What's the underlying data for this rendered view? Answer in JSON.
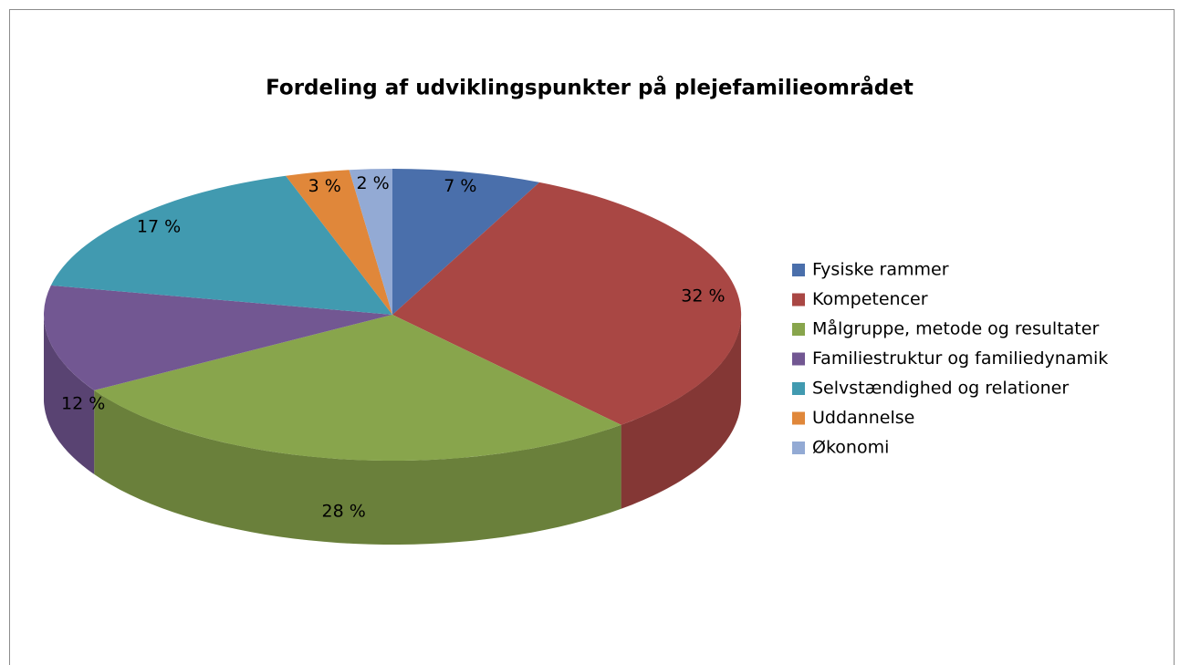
{
  "chart_data": {
    "type": "pie3d",
    "title": "Fordeling af udviklingspunkter på plejefamilieområdet",
    "categories": [
      "Fysiske rammer",
      "Kompetencer",
      "Målgruppe, metode og resultater",
      "Familiestruktur og familiedynamik",
      "Selvstændighed og relationer",
      "Uddannelse",
      "Økonomi"
    ],
    "values": [
      7,
      32,
      28,
      12,
      17,
      3,
      2
    ],
    "value_labels": [
      "7 %",
      "32 %",
      "28 %",
      "12 %",
      "17 %",
      "3 %",
      "2 %"
    ],
    "colors": [
      "#4a6fab",
      "#a94744",
      "#88a54c",
      "#725792",
      "#419ab0",
      "#e0873a",
      "#93aad4"
    ],
    "legend": "right"
  }
}
